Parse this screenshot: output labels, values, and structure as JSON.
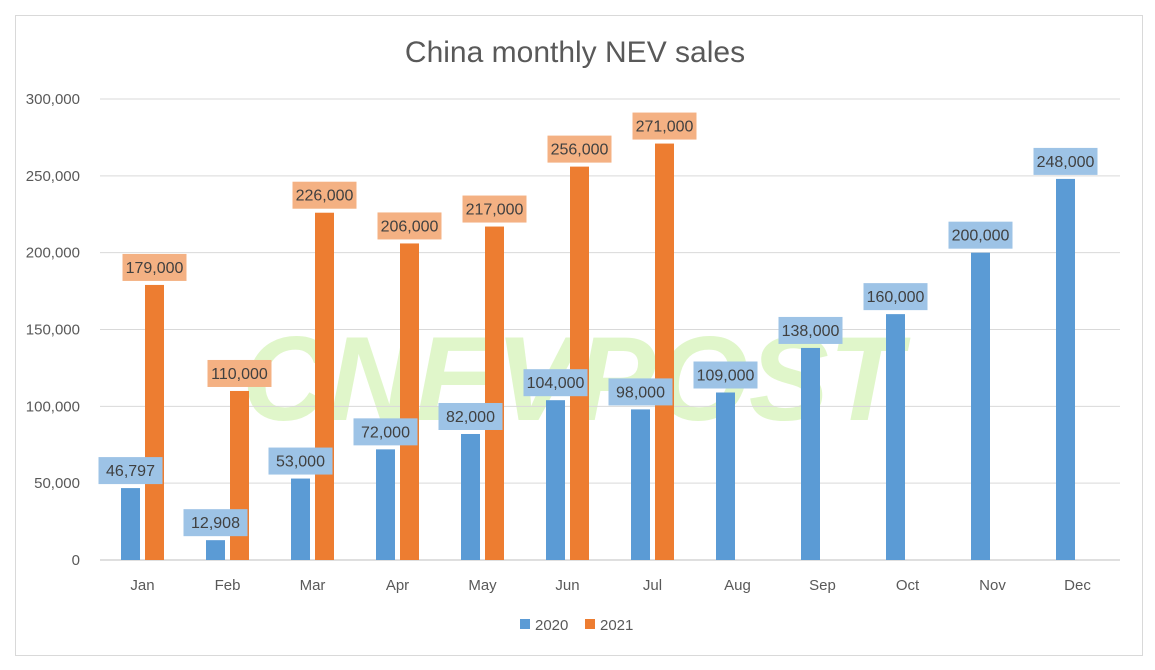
{
  "chart_data": {
    "type": "bar",
    "title": "China monthly NEV sales",
    "categories": [
      "Jan",
      "Feb",
      "Mar",
      "Apr",
      "May",
      "Jun",
      "Jul",
      "Aug",
      "Sep",
      "Oct",
      "Nov",
      "Dec"
    ],
    "series": [
      {
        "name": "2020",
        "color": "#5B9BD5",
        "label_color": "#9DC3E6",
        "values": [
          46797,
          12908,
          53000,
          72000,
          82000,
          104000,
          98000,
          109000,
          138000,
          160000,
          200000,
          248000
        ]
      },
      {
        "name": "2021",
        "color": "#ED7D31",
        "label_color": "#F4B183",
        "values": [
          179000,
          110000,
          226000,
          206000,
          217000,
          256000,
          271000,
          null,
          null,
          null,
          null,
          null
        ]
      }
    ],
    "ylim": [
      0,
      300000
    ],
    "yticks": [
      0,
      50000,
      100000,
      150000,
      200000,
      250000,
      300000
    ],
    "grid": true,
    "legend_position": "bottom",
    "watermark": "CNEVPOST"
  }
}
